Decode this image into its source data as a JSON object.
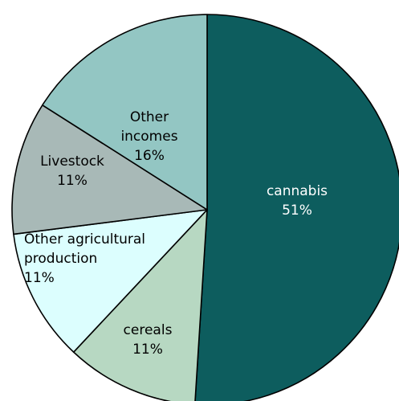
{
  "chart_data": {
    "type": "pie",
    "start_angle_deg": 0,
    "direction": "clockwise",
    "slices": [
      {
        "label": "cannabis",
        "value": 51,
        "value_label": "51%",
        "color": "#0d5d5e",
        "text_color": "#ffffff"
      },
      {
        "label": "cereals",
        "value": 11,
        "value_label": "11%",
        "color": "#b7d8c2",
        "text_color": "#000000"
      },
      {
        "label": "Other agricultural production",
        "value": 11,
        "value_label": "11%",
        "color": "#dcfefe",
        "text_color": "#000000"
      },
      {
        "label": "Livestock",
        "value": 11,
        "value_label": "11%",
        "color": "#a8b9b7",
        "text_color": "#000000"
      },
      {
        "label": "Other incomes",
        "value": 16,
        "value_label": "16%",
        "color": "#93c6c3",
        "text_color": "#000000"
      }
    ]
  }
}
